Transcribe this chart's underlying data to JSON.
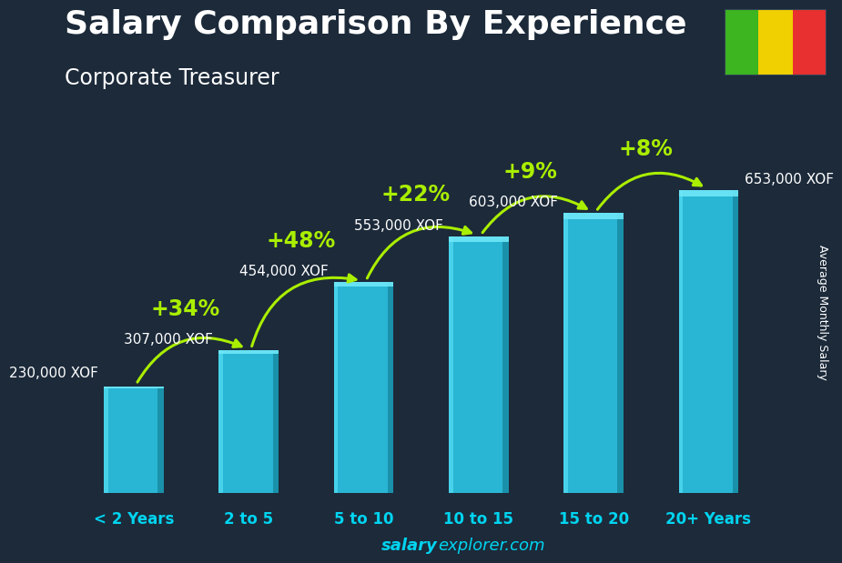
{
  "title": "Salary Comparison By Experience",
  "subtitle": "Corporate Treasurer",
  "ylabel": "Average Monthly Salary",
  "watermark_bold": "salary",
  "watermark_rest": "explorer.com",
  "categories": [
    "< 2 Years",
    "2 to 5",
    "5 to 10",
    "10 to 15",
    "15 to 20",
    "20+ Years"
  ],
  "values": [
    230000,
    307000,
    454000,
    553000,
    603000,
    653000
  ],
  "labels": [
    "230,000 XOF",
    "307,000 XOF",
    "454,000 XOF",
    "553,000 XOF",
    "603,000 XOF",
    "653,000 XOF"
  ],
  "pct_labels": [
    "+34%",
    "+48%",
    "+22%",
    "+9%",
    "+8%"
  ],
  "bar_color_main": "#29b6d4",
  "bar_color_left": "#4dd8ef",
  "bar_color_right": "#1a8fa8",
  "bar_color_top": "#6ee8f8",
  "background_color": "#1c2a3a",
  "title_color": "#ffffff",
  "subtitle_color": "#ffffff",
  "label_color": "#ffffff",
  "pct_color": "#aaee00",
  "arrow_color": "#aaee00",
  "tick_color": "#00d4f0",
  "title_fontsize": 26,
  "subtitle_fontsize": 17,
  "label_fontsize": 11,
  "pct_fontsize": 17,
  "tick_fontsize": 12,
  "flag_green": "#3cb521",
  "flag_yellow": "#f0d000",
  "flag_red": "#e83030",
  "ylim_max": 780000
}
